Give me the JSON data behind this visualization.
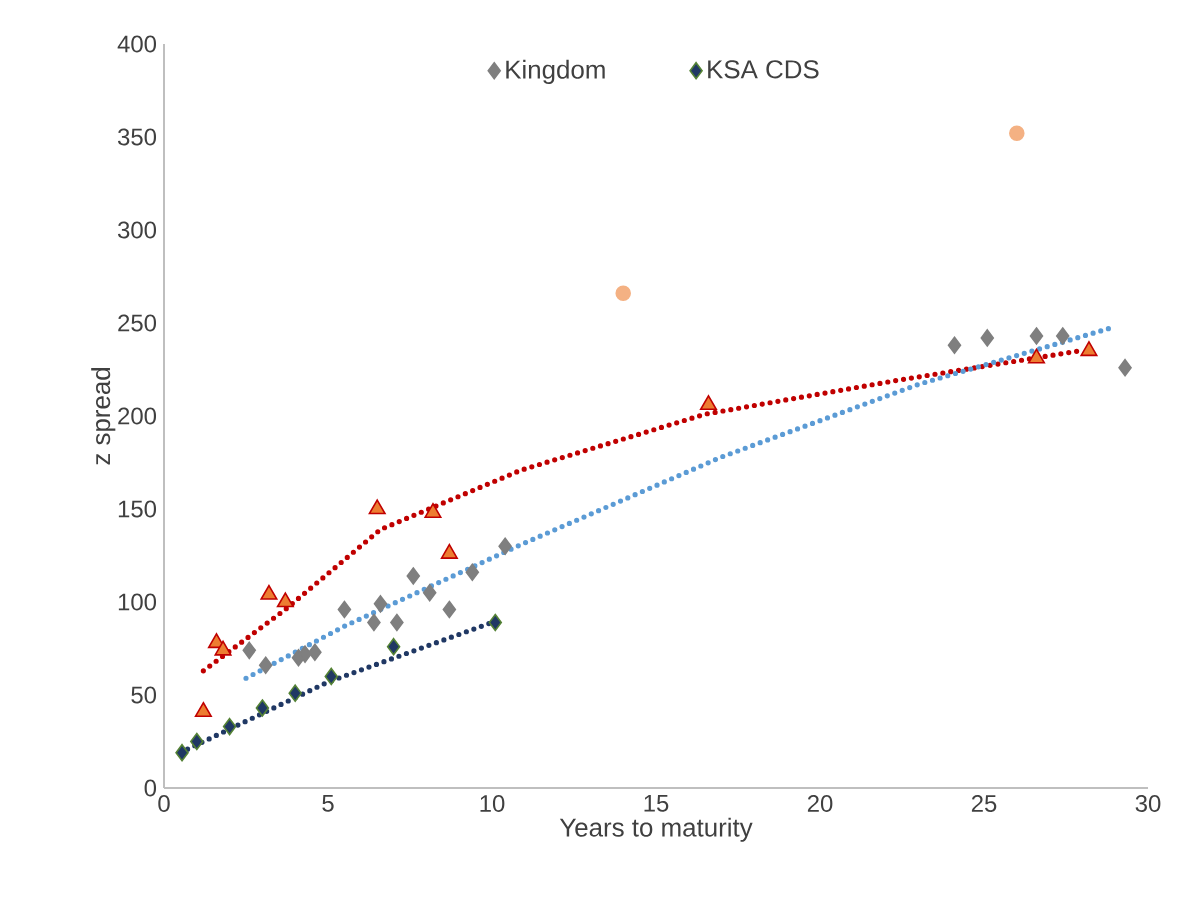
{
  "chart_data": {
    "type": "scatter",
    "xlabel": "Years to maturity",
    "ylabel": "z spread",
    "xlim": [
      0,
      30
    ],
    "xticks": [
      0,
      5,
      10,
      15,
      20,
      25,
      30
    ],
    "ylim": [
      0,
      400
    ],
    "yticks": [
      0,
      50,
      100,
      150,
      200,
      250,
      300,
      350,
      400
    ],
    "grid": false,
    "legend": "top",
    "series": [
      {
        "name": "Kingdom",
        "marker": "diamond",
        "color": "#7f7f7f",
        "x": [
          2.6,
          3.1,
          4.1,
          4.3,
          4.6,
          5.5,
          6.4,
          6.6,
          7.1,
          7.6,
          8.1,
          8.7,
          9.4,
          10.4,
          24.1,
          25.1,
          26.6,
          27.4,
          29.3
        ],
        "values": [
          74,
          66,
          70,
          72,
          73,
          96,
          89,
          99,
          89,
          114,
          105,
          96,
          116,
          130,
          238,
          242,
          243,
          243,
          226
        ]
      },
      {
        "marker": "triangle",
        "color": "#c00000",
        "x": [
          1.2,
          1.6,
          1.8,
          3.2,
          3.7,
          6.5,
          8.2,
          8.7,
          16.6,
          26.6,
          28.2
        ],
        "values": [
          41,
          78,
          74,
          104,
          100,
          150,
          148,
          126,
          206,
          231,
          235
        ]
      },
      {
        "marker": "circle",
        "color": "#f4b183",
        "x": [
          14.0,
          26.0
        ],
        "values": [
          266,
          352
        ]
      },
      {
        "name": "KSA CDS",
        "marker": "diamond",
        "color": "#548235",
        "x": [
          0.55,
          1.0,
          2.0,
          3.0,
          4.0,
          5.1,
          7.0,
          10.1
        ],
        "values": [
          19,
          25,
          33,
          43,
          51,
          60,
          76,
          89
        ]
      },
      {
        "type": "line",
        "line_style": "dotted",
        "color": "#c00000",
        "x": [
          1.2,
          3.7,
          6.6,
          10.9,
          16.5,
          22.3,
          27.9
        ],
        "values": [
          63,
          96,
          139,
          171,
          201,
          219,
          235
        ]
      },
      {
        "type": "line",
        "line_style": "dotted",
        "color": "#5b9bd5",
        "x": [
          2.5,
          5.5,
          10.9,
          17.0,
          23.0,
          29.0
        ],
        "values": [
          59,
          87,
          131,
          178,
          217,
          248
        ]
      },
      {
        "type": "line",
        "line_style": "dotted",
        "color": "#203864",
        "x": [
          0.5,
          5.0,
          10.0
        ],
        "values": [
          19,
          57,
          89
        ]
      }
    ]
  }
}
